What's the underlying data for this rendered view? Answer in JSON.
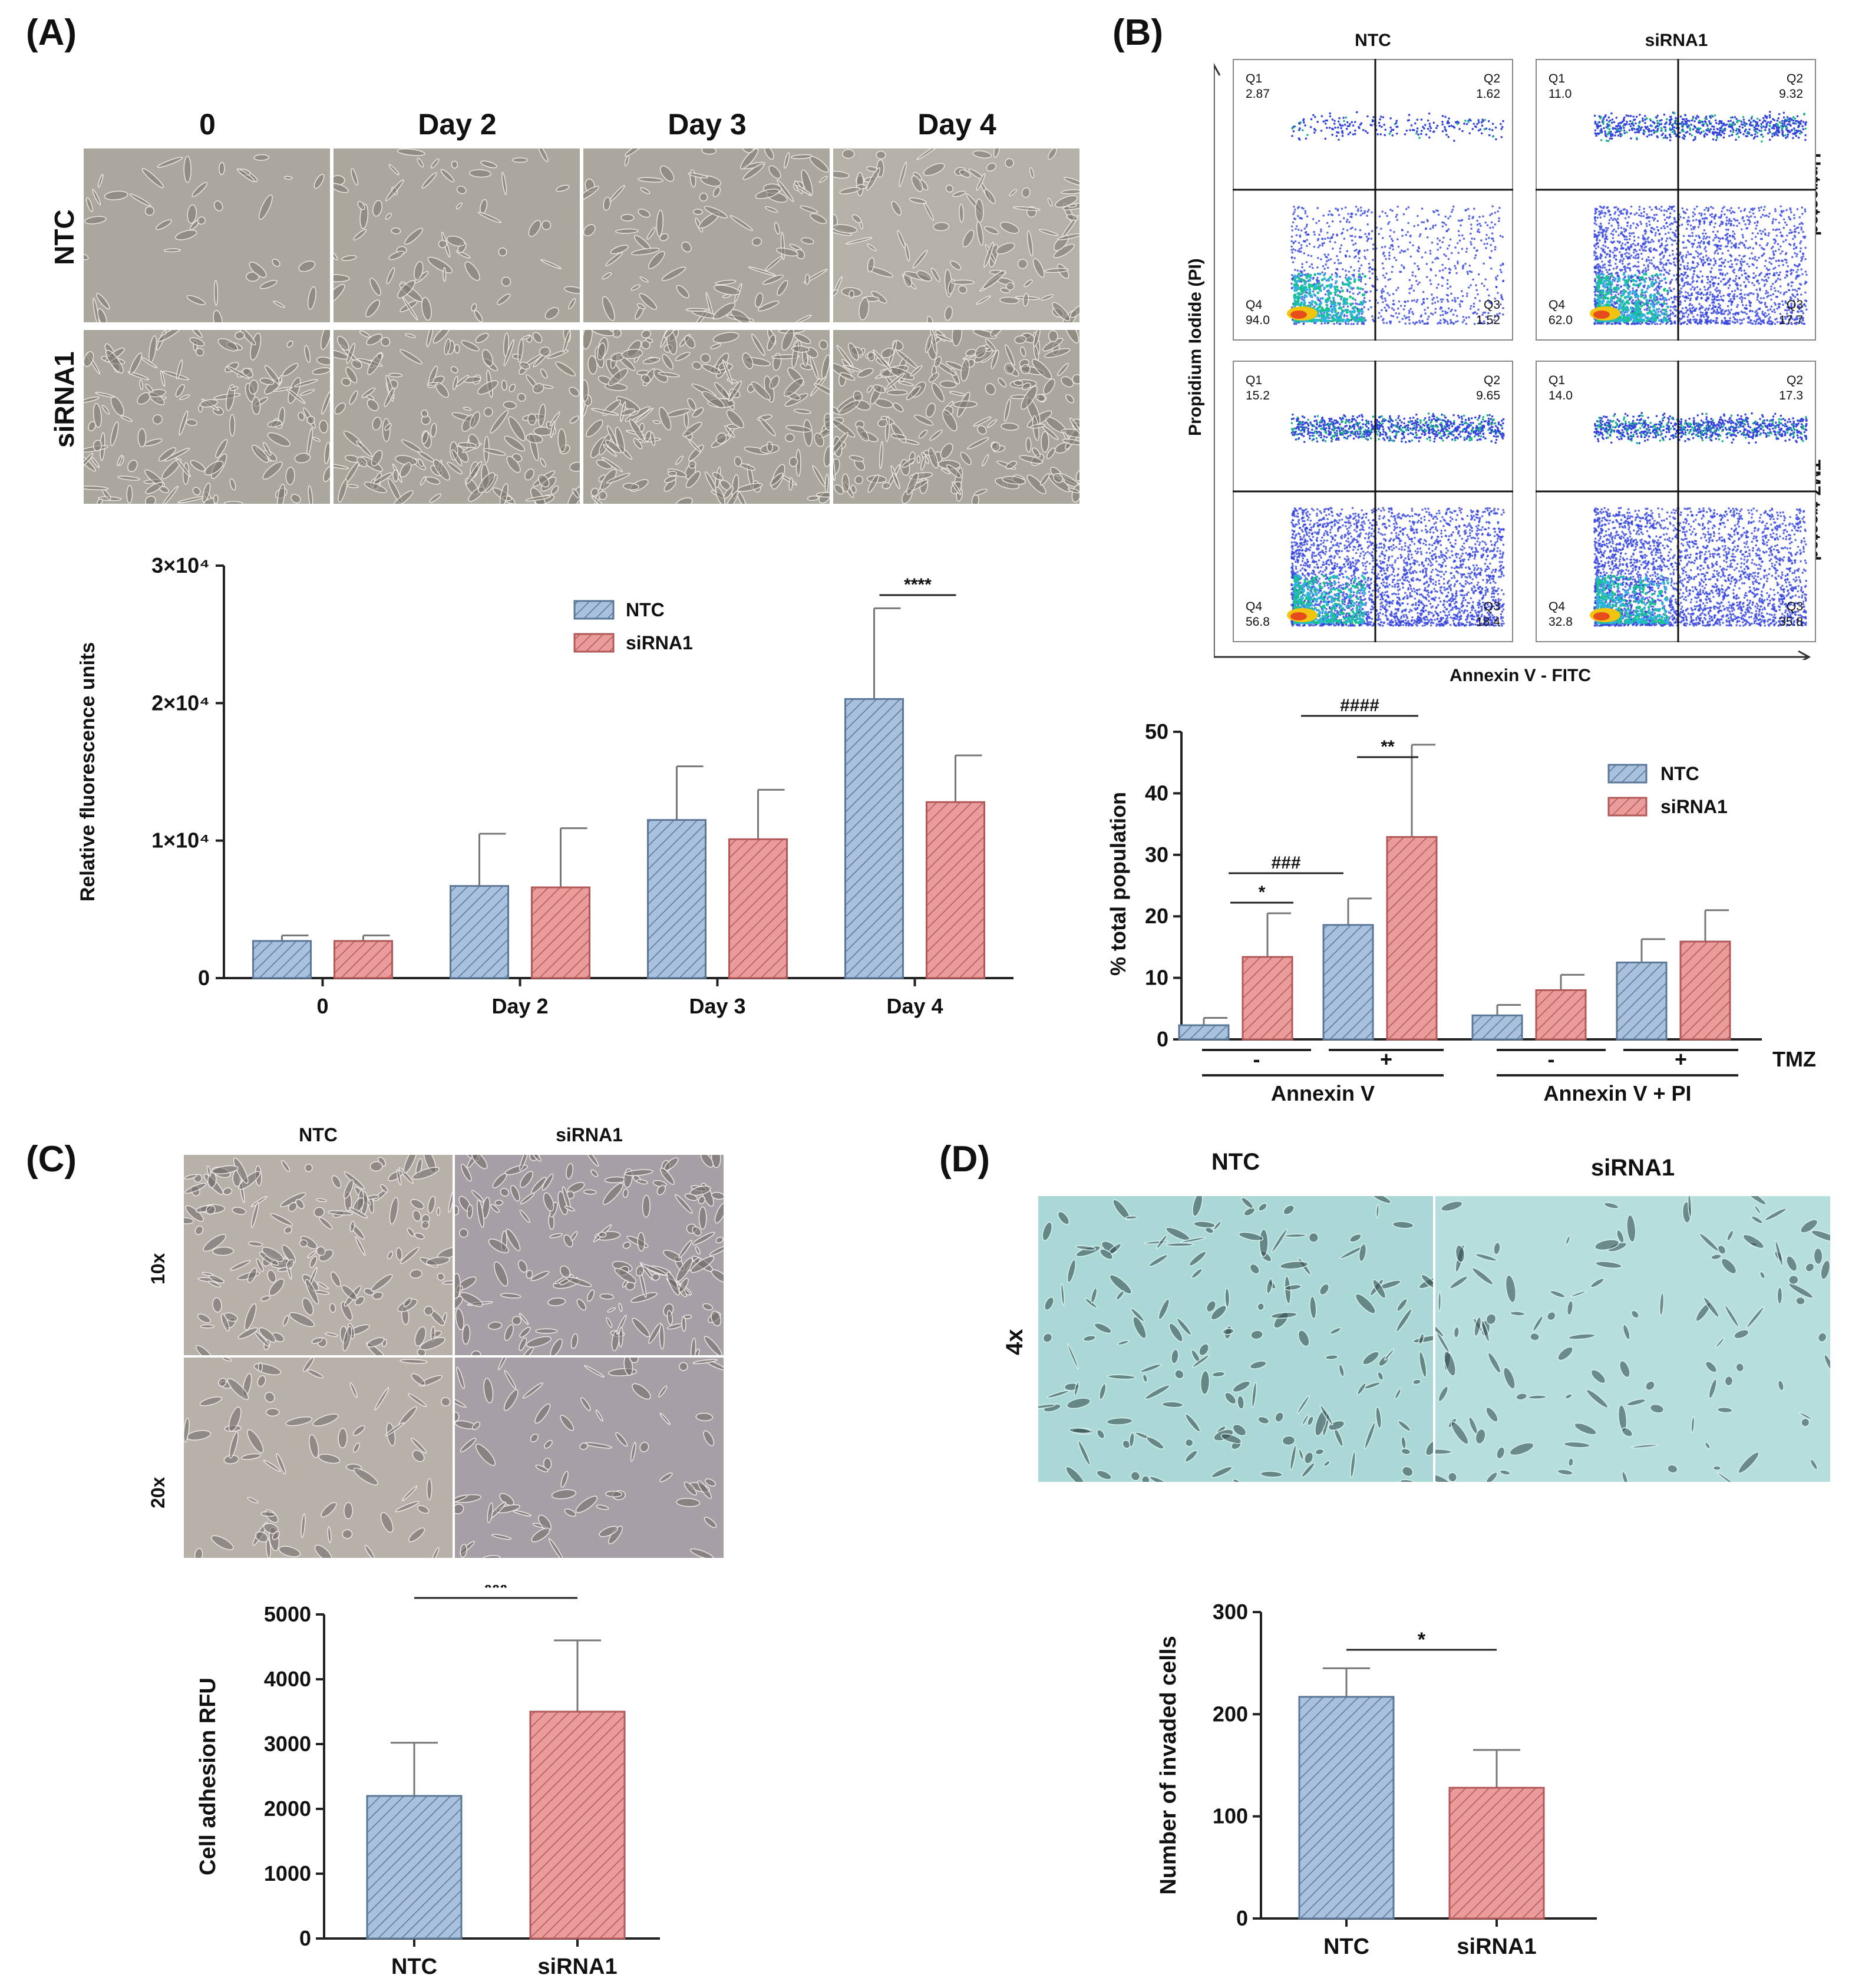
{
  "panels": {
    "a": {
      "label": "(A)",
      "micro_cols": [
        "0",
        "Day 2",
        "Day 3",
        "Day 4"
      ],
      "micro_rows": [
        "NTC",
        "siRNA1"
      ]
    },
    "b": {
      "label": "(B)",
      "flow_cols": [
        "NTC",
        "siRNA1"
      ],
      "flow_rows": [
        "Untreated",
        "TMZ-treated"
      ],
      "flow_ylabel": "Propidium Iodide (PI)",
      "flow_xlabel": "Annexin V - FITC",
      "quadrants": [
        {
          "q1": "2.87",
          "q2": "1.62",
          "q3": "1.52",
          "q4": "94.0"
        },
        {
          "q1": "11.0",
          "q2": "9.32",
          "q3": "17.7",
          "q4": "62.0"
        },
        {
          "q1": "15.2",
          "q2": "9.65",
          "q3": "18.4",
          "q4": "56.8"
        },
        {
          "q1": "14.0",
          "q2": "17.3",
          "q3": "35.8",
          "q4": "32.8"
        }
      ],
      "q_names": {
        "q1": "Q1",
        "q2": "Q2",
        "q3": "Q3",
        "q4": "Q4"
      },
      "tmz_minus": "-",
      "tmz_plus": "+",
      "tmz_label": "TMZ",
      "group_annexin": "Annexin V",
      "group_annexin_pi": "Annexin V + PI"
    },
    "c": {
      "label": "(C)",
      "micro_cols": [
        "NTC",
        "siRNA1"
      ],
      "micro_rows": [
        "10x",
        "20x"
      ]
    },
    "d": {
      "label": "(D)",
      "micro_cols": [
        "NTC",
        "siRNA1"
      ],
      "micro_rows": [
        "4x"
      ]
    }
  },
  "chart_data": [
    {
      "id": "A",
      "type": "bar",
      "categories": [
        "0",
        "Day 2",
        "Day 3",
        "Day 4"
      ],
      "series": [
        {
          "name": "NTC",
          "values": [
            2700,
            6700,
            11500,
            20300
          ],
          "errors": [
            400,
            3800,
            3900,
            6600
          ]
        },
        {
          "name": "siRNA1",
          "values": [
            2700,
            6600,
            10100,
            12800
          ],
          "errors": [
            400,
            4300,
            3600,
            3400
          ]
        }
      ],
      "ylabel": "Relative fluorescence units",
      "ylim": [
        0,
        30000
      ],
      "yticks": [
        "0",
        "1×10⁴",
        "2×10⁴",
        "3×10⁴"
      ],
      "legend": "top-center",
      "annotations": [
        {
          "text": "****",
          "between": "Day 4"
        }
      ]
    },
    {
      "id": "B",
      "type": "bar",
      "categories": [
        "Annexin V TMZ -",
        "Annexin V TMZ +",
        "Annexin V + PI TMZ -",
        "Annexin V + PI TMZ +"
      ],
      "series": [
        {
          "name": "NTC",
          "values": [
            2.3,
            18.6,
            3.9,
            12.5
          ],
          "errors": [
            1.2,
            4.3,
            1.7,
            3.8
          ]
        },
        {
          "name": "siRNA1",
          "values": [
            13.4,
            32.9,
            8.0,
            15.9
          ],
          "errors": [
            7.1,
            15.0,
            2.5,
            5.1
          ]
        }
      ],
      "ylabel": "% total population",
      "ylim": [
        0,
        50
      ],
      "yticks": [
        "0",
        "10",
        "20",
        "30",
        "40",
        "50"
      ],
      "legend": "top-right",
      "annotations": [
        "*",
        "###",
        "**",
        "####"
      ]
    },
    {
      "id": "C",
      "type": "bar",
      "categories": [
        "NTC",
        "siRNA1"
      ],
      "values": [
        2200,
        3500
      ],
      "errors": [
        820,
        1100
      ],
      "ylabel": "Cell adhesion RFU",
      "ylim": [
        0,
        5000
      ],
      "yticks": [
        "0",
        "1000",
        "2000",
        "3000",
        "4000",
        "5000"
      ],
      "annotations": [
        "***"
      ]
    },
    {
      "id": "D",
      "type": "bar",
      "categories": [
        "NTC",
        "siRNA1"
      ],
      "values": [
        217,
        128
      ],
      "errors": [
        28,
        37
      ],
      "ylabel": "Number of invaded cells",
      "ylim": [
        0,
        300
      ],
      "yticks": [
        "0",
        "100",
        "200",
        "300"
      ],
      "annotations": [
        "*"
      ]
    }
  ],
  "colors": {
    "ntc": "#a9c1dc",
    "sirna": "#ea9c9c",
    "ntc_dark": "#5a7797",
    "sirna_dark": "#b35858"
  }
}
